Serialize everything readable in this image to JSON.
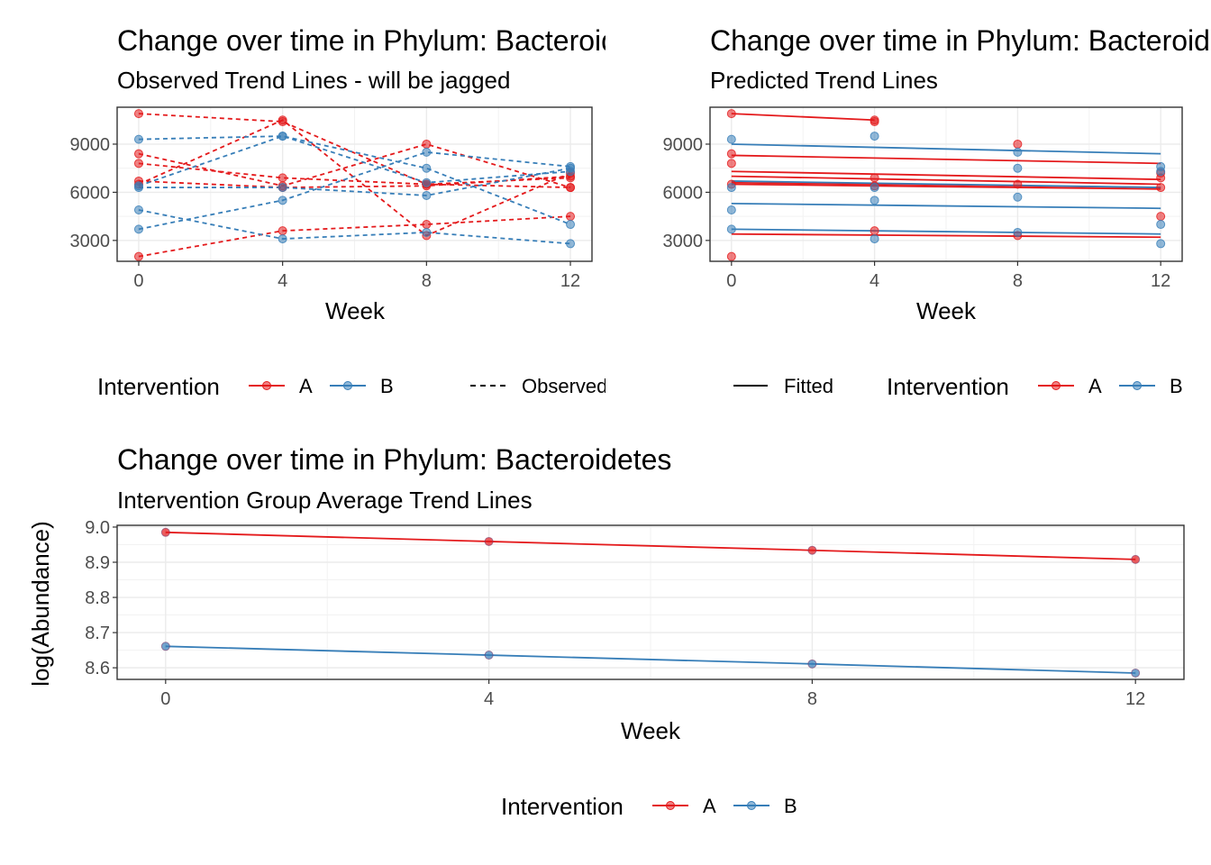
{
  "chart_data": [
    {
      "type": "line",
      "title": "Change over time in Phylum: Bacteroidetes",
      "subtitle": "Observed Trend Lines - will be jagged",
      "xlabel": "Week",
      "ylabel": "",
      "x": [
        0,
        4,
        8,
        12
      ],
      "xticks": [
        "0",
        "4",
        "8",
        "12"
      ],
      "yticks": [
        "3000",
        "6000",
        "9000"
      ],
      "xlim": [
        -0.6,
        12.6
      ],
      "ylim": [
        1700,
        11300
      ],
      "legend_position": "bottom",
      "legend": {
        "title": "Intervention",
        "groups": [
          {
            "label": "A",
            "color": "#e41a1c"
          },
          {
            "label": "B",
            "color": "#377eb8"
          }
        ],
        "linetype_label": "Observed"
      },
      "linetype": "dashed",
      "series": [
        {
          "group": "A",
          "values": [
            10900,
            10400,
            6500,
            6300
          ]
        },
        {
          "group": "A",
          "values": [
            8400,
            6400,
            9000,
            6300
          ]
        },
        {
          "group": "A",
          "values": [
            7800,
            6900,
            6500,
            6900
          ]
        },
        {
          "group": "A",
          "values": [
            6500,
            10500,
            3300,
            7200
          ]
        },
        {
          "group": "A",
          "values": [
            2000,
            3600,
            4000,
            4500
          ]
        },
        {
          "group": "A",
          "values": [
            6700,
            6300,
            6400,
            7000
          ]
        },
        {
          "group": "B",
          "values": [
            9300,
            9500,
            7500,
            4000
          ]
        },
        {
          "group": "B",
          "values": [
            6300,
            6300,
            5800,
            7500
          ]
        },
        {
          "group": "B",
          "values": [
            4900,
            3100,
            3500,
            2800
          ]
        },
        {
          "group": "B",
          "values": [
            3700,
            5500,
            8500,
            7600
          ]
        },
        {
          "group": "B",
          "values": [
            6400,
            9500,
            6600,
            7300
          ]
        }
      ]
    },
    {
      "type": "line",
      "title": "Change over time in Phylum: Bacteroidetes",
      "subtitle": "Predicted Trend Lines",
      "xlabel": "Week",
      "ylabel": "",
      "x": [
        0,
        4,
        8,
        12
      ],
      "xticks": [
        "0",
        "4",
        "8",
        "12"
      ],
      "yticks": [
        "3000",
        "6000",
        "9000"
      ],
      "xlim": [
        -0.6,
        12.6
      ],
      "ylim": [
        1700,
        11300
      ],
      "legend_position": "bottom",
      "legend": {
        "title": "Intervention",
        "groups": [
          {
            "label": "A",
            "color": "#e41a1c"
          },
          {
            "label": "B",
            "color": "#377eb8"
          }
        ],
        "linetype_label": "Fitted"
      },
      "linetype": "solid",
      "fitted": [
        {
          "group": "A",
          "x": [
            0,
            4
          ],
          "values": [
            10900,
            10500
          ]
        },
        {
          "group": "A",
          "x": [
            0,
            12
          ],
          "values": [
            8300,
            7800
          ]
        },
        {
          "group": "A",
          "x": [
            0,
            12
          ],
          "values": [
            7300,
            6800
          ]
        },
        {
          "group": "A",
          "x": [
            0,
            12
          ],
          "values": [
            7000,
            6500
          ]
        },
        {
          "group": "A",
          "x": [
            0,
            12
          ],
          "values": [
            6600,
            6300
          ]
        },
        {
          "group": "A",
          "x": [
            0,
            12
          ],
          "values": [
            6500,
            6200
          ]
        },
        {
          "group": "A",
          "x": [
            0,
            12
          ],
          "values": [
            3400,
            3200
          ]
        },
        {
          "group": "B",
          "x": [
            0,
            12
          ],
          "values": [
            9000,
            8400
          ]
        },
        {
          "group": "B",
          "x": [
            0,
            12
          ],
          "values": [
            6700,
            6300
          ]
        },
        {
          "group": "B",
          "x": [
            0,
            12
          ],
          "values": [
            5300,
            5000
          ]
        },
        {
          "group": "B",
          "x": [
            0,
            12
          ],
          "values": [
            3700,
            3400
          ]
        }
      ],
      "points": [
        {
          "group": "A",
          "x": 0,
          "y": 10900
        },
        {
          "group": "A",
          "x": 0,
          "y": 8400
        },
        {
          "group": "A",
          "x": 0,
          "y": 7800
        },
        {
          "group": "A",
          "x": 0,
          "y": 6500
        },
        {
          "group": "A",
          "x": 0,
          "y": 2000
        },
        {
          "group": "B",
          "x": 0,
          "y": 9300
        },
        {
          "group": "B",
          "x": 0,
          "y": 6300
        },
        {
          "group": "B",
          "x": 0,
          "y": 4900
        },
        {
          "group": "B",
          "x": 0,
          "y": 3700
        },
        {
          "group": "A",
          "x": 4,
          "y": 10500
        },
        {
          "group": "A",
          "x": 4,
          "y": 10400
        },
        {
          "group": "A",
          "x": 4,
          "y": 6900
        },
        {
          "group": "A",
          "x": 4,
          "y": 6400
        },
        {
          "group": "A",
          "x": 4,
          "y": 3600
        },
        {
          "group": "B",
          "x": 4,
          "y": 9500
        },
        {
          "group": "B",
          "x": 4,
          "y": 6300
        },
        {
          "group": "B",
          "x": 4,
          "y": 5500
        },
        {
          "group": "B",
          "x": 4,
          "y": 3100
        },
        {
          "group": "A",
          "x": 8,
          "y": 9000
        },
        {
          "group": "A",
          "x": 8,
          "y": 6500
        },
        {
          "group": "A",
          "x": 8,
          "y": 3300
        },
        {
          "group": "B",
          "x": 8,
          "y": 8500
        },
        {
          "group": "B",
          "x": 8,
          "y": 7500
        },
        {
          "group": "B",
          "x": 8,
          "y": 5700
        },
        {
          "group": "B",
          "x": 8,
          "y": 3500
        },
        {
          "group": "A",
          "x": 12,
          "y": 7200
        },
        {
          "group": "A",
          "x": 12,
          "y": 6900
        },
        {
          "group": "A",
          "x": 12,
          "y": 6300
        },
        {
          "group": "A",
          "x": 12,
          "y": 4500
        },
        {
          "group": "B",
          "x": 12,
          "y": 7600
        },
        {
          "group": "B",
          "x": 12,
          "y": 7300
        },
        {
          "group": "B",
          "x": 12,
          "y": 4000
        },
        {
          "group": "B",
          "x": 12,
          "y": 2800
        }
      ]
    },
    {
      "type": "line",
      "title": "Change over time in Phylum: Bacteroidetes",
      "subtitle": "Intervention Group Average Trend Lines",
      "xlabel": "Week",
      "ylabel": "log(Abundance)",
      "x": [
        0,
        4,
        8,
        12
      ],
      "xticks": [
        "0",
        "4",
        "8",
        "12"
      ],
      "yticks": [
        "8.6",
        "8.7",
        "8.8",
        "8.9",
        "9.0"
      ],
      "xlim": [
        -0.6,
        12.6
      ],
      "ylim": [
        8.567,
        9.005
      ],
      "legend_position": "bottom",
      "legend": {
        "title": "Intervention",
        "groups": [
          {
            "label": "A",
            "color": "#e41a1c"
          },
          {
            "label": "B",
            "color": "#377eb8"
          }
        ]
      },
      "series": [
        {
          "name": "A",
          "values": [
            8.985,
            8.959,
            8.934,
            8.908
          ]
        },
        {
          "name": "B",
          "values": [
            8.661,
            8.636,
            8.611,
            8.585
          ]
        }
      ]
    }
  ]
}
